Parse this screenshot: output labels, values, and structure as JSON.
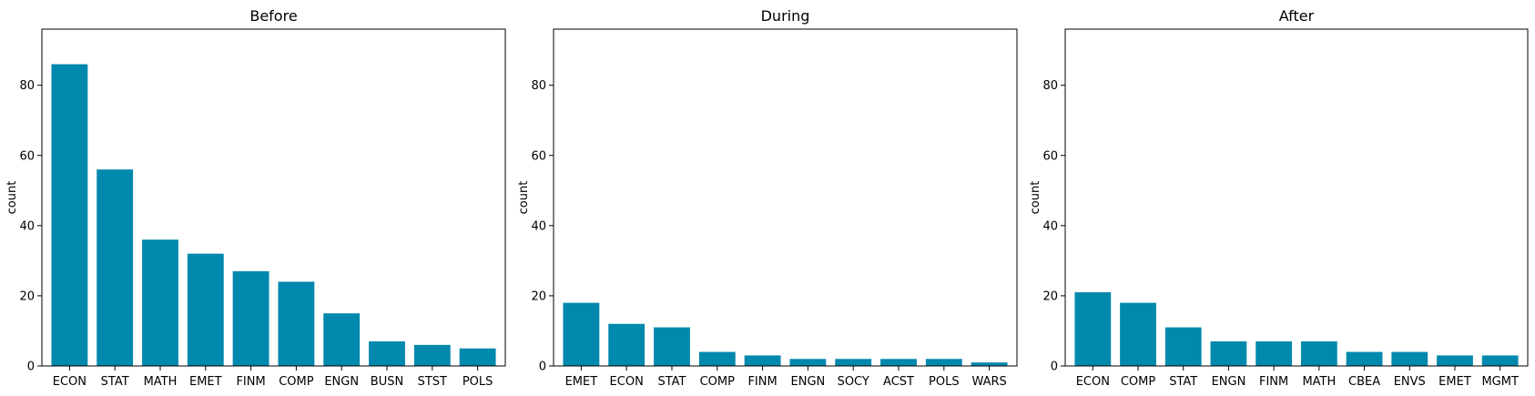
{
  "chart_data": [
    {
      "type": "bar",
      "title": "Before",
      "xlabel": "",
      "ylabel": "count",
      "ylim": [
        0,
        96
      ],
      "yticks": [
        0,
        20,
        40,
        60,
        80
      ],
      "grid": false,
      "color": "#0088ad",
      "categories": [
        "ECON",
        "STAT",
        "MATH",
        "EMET",
        "FINM",
        "COMP",
        "ENGN",
        "BUSN",
        "STST",
        "POLS"
      ],
      "values": [
        86,
        56,
        36,
        32,
        27,
        24,
        15,
        7,
        6,
        5
      ]
    },
    {
      "type": "bar",
      "title": "During",
      "xlabel": "",
      "ylabel": "count",
      "ylim": [
        0,
        96
      ],
      "yticks": [
        0,
        20,
        40,
        60,
        80
      ],
      "grid": false,
      "color": "#0088ad",
      "categories": [
        "EMET",
        "ECON",
        "STAT",
        "COMP",
        "FINM",
        "ENGN",
        "SOCY",
        "ACST",
        "POLS",
        "WARS"
      ],
      "values": [
        18,
        12,
        11,
        4,
        3,
        2,
        2,
        2,
        2,
        1
      ]
    },
    {
      "type": "bar",
      "title": "After",
      "xlabel": "",
      "ylabel": "count",
      "ylim": [
        0,
        96
      ],
      "yticks": [
        0,
        20,
        40,
        60,
        80
      ],
      "grid": false,
      "color": "#0088ad",
      "categories": [
        "ECON",
        "COMP",
        "STAT",
        "ENGN",
        "FINM",
        "MATH",
        "CBEA",
        "ENVS",
        "EMET",
        "MGMT"
      ],
      "values": [
        21,
        18,
        11,
        7,
        7,
        7,
        4,
        4,
        3,
        3
      ]
    }
  ]
}
